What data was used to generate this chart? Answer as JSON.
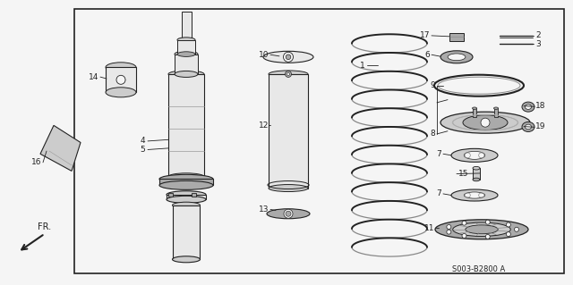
{
  "bg_color": "#f5f5f5",
  "line_color": "#222222",
  "fill_light": "#e8e8e8",
  "fill_mid": "#cccccc",
  "fill_dark": "#aaaaaa",
  "diagram_code": "S003-B2800 A",
  "fr_label": "FR.",
  "figsize": [
    6.4,
    3.19
  ],
  "dpi": 100,
  "border": [
    0.13,
    0.04,
    0.855,
    0.93
  ]
}
